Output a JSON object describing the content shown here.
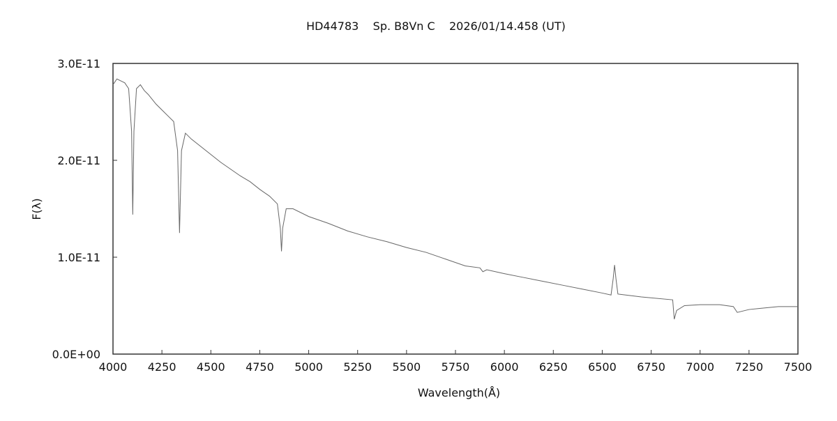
{
  "chart_data": {
    "type": "line",
    "title": "HD44783    Sp. B8Vn C    2026/01/14.458 (UT)",
    "xlabel": "Wavelength(Å)",
    "ylabel": "F(λ)",
    "xlim": [
      4000,
      7500
    ],
    "ylim": [
      0,
      3e-11
    ],
    "x_ticks": [
      4000,
      4250,
      4500,
      4750,
      5000,
      5250,
      5500,
      5750,
      6000,
      6250,
      6500,
      6750,
      7000,
      7250,
      7500
    ],
    "x_tick_labels": [
      "4000",
      "4250",
      "4500",
      "4750",
      "5000",
      "5250",
      "5500",
      "5750",
      "6000",
      "6250",
      "6500",
      "6750",
      "7000",
      "7250",
      "7500"
    ],
    "y_ticks": [
      0,
      1e-11,
      2e-11,
      3e-11
    ],
    "y_tick_labels": [
      "0.0E+00",
      "1.0E-11",
      "2.0E-11",
      "3.0E-11"
    ],
    "grid": false,
    "line_color": "#666666",
    "series": [
      {
        "values": [
          [
            4000,
            2.78e-11
          ],
          [
            4020,
            2.84e-11
          ],
          [
            4040,
            2.82e-11
          ],
          [
            4060,
            2.8e-11
          ],
          [
            4080,
            2.74e-11
          ],
          [
            4095,
            2.3e-11
          ],
          [
            4101,
            1.44e-11
          ],
          [
            4107,
            2.3e-11
          ],
          [
            4120,
            2.74e-11
          ],
          [
            4140,
            2.78e-11
          ],
          [
            4160,
            2.72e-11
          ],
          [
            4180,
            2.68e-11
          ],
          [
            4200,
            2.63e-11
          ],
          [
            4220,
            2.58e-11
          ],
          [
            4250,
            2.52e-11
          ],
          [
            4280,
            2.46e-11
          ],
          [
            4310,
            2.4e-11
          ],
          [
            4330,
            2.1e-11
          ],
          [
            4340,
            1.25e-11
          ],
          [
            4350,
            2.1e-11
          ],
          [
            4370,
            2.28e-11
          ],
          [
            4400,
            2.22e-11
          ],
          [
            4450,
            2.14e-11
          ],
          [
            4500,
            2.06e-11
          ],
          [
            4550,
            1.98e-11
          ],
          [
            4600,
            1.91e-11
          ],
          [
            4650,
            1.84e-11
          ],
          [
            4700,
            1.78e-11
          ],
          [
            4750,
            1.7e-11
          ],
          [
            4800,
            1.63e-11
          ],
          [
            4840,
            1.55e-11
          ],
          [
            4855,
            1.3e-11
          ],
          [
            4861,
            1.06e-11
          ],
          [
            4867,
            1.3e-11
          ],
          [
            4885,
            1.5e-11
          ],
          [
            4920,
            1.5e-11
          ],
          [
            5000,
            1.42e-11
          ],
          [
            5100,
            1.35e-11
          ],
          [
            5200,
            1.27e-11
          ],
          [
            5300,
            1.21e-11
          ],
          [
            5400,
            1.16e-11
          ],
          [
            5500,
            1.1e-11
          ],
          [
            5600,
            1.05e-11
          ],
          [
            5700,
            9.8e-12
          ],
          [
            5800,
            9.1e-12
          ],
          [
            5875,
            8.9e-12
          ],
          [
            5890,
            8.5e-12
          ],
          [
            5910,
            8.7e-12
          ],
          [
            6000,
            8.3e-12
          ],
          [
            6100,
            7.9e-12
          ],
          [
            6200,
            7.5e-12
          ],
          [
            6300,
            7.1e-12
          ],
          [
            6400,
            6.7e-12
          ],
          [
            6500,
            6.3e-12
          ],
          [
            6545,
            6.1e-12
          ],
          [
            6556,
            7.8e-12
          ],
          [
            6563,
            9.2e-12
          ],
          [
            6570,
            7.8e-12
          ],
          [
            6580,
            6.2e-12
          ],
          [
            6700,
            5.9e-12
          ],
          [
            6860,
            5.6e-12
          ],
          [
            6868,
            3.6e-12
          ],
          [
            6880,
            4.5e-12
          ],
          [
            6920,
            5e-12
          ],
          [
            7000,
            5.1e-12
          ],
          [
            7100,
            5.1e-12
          ],
          [
            7170,
            4.9e-12
          ],
          [
            7190,
            4.3e-12
          ],
          [
            7250,
            4.6e-12
          ],
          [
            7300,
            4.7e-12
          ],
          [
            7400,
            4.9e-12
          ],
          [
            7500,
            4.9e-12
          ]
        ]
      }
    ]
  }
}
